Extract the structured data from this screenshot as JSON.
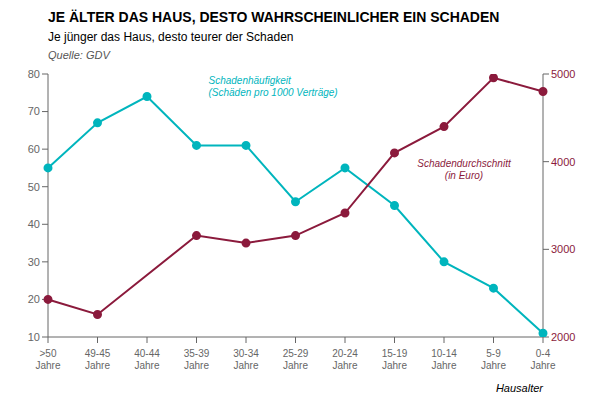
{
  "chart_data": {
    "type": "line",
    "title": "JE ÄLTER DAS HAUS, DESTO WAHRSCHEINLICHER EIN SCHADEN",
    "subtitle": "Je jünger das Haus, desto teurer der Schaden",
    "annotations": [
      "Quelle: GDV"
    ],
    "x_label": "Hausalter",
    "categories": [
      ">50\nJahre",
      "49-45\nJahre",
      "40-44\nJahre",
      "35-39\nJahre",
      "30-34\nJahre",
      "25-29\nJahre",
      "20-24\nJahre",
      "15-19\nJahre",
      "10-14\nJahre",
      "5-9\nJahre",
      "0-4\nJahre"
    ],
    "series": [
      {
        "name": "Schadenhäufigkeit\n(Schäden pro 1000 Verträge)",
        "color": "#00B5BD",
        "marker": "circle",
        "values": [
          55,
          67,
          74,
          61,
          61,
          46,
          55,
          45,
          30,
          23,
          11
        ]
      },
      {
        "name": "Schadendurchschnitt\n(in Euro)",
        "color": "#8B1A3C",
        "marker": "circle",
        "axis": "y2",
        "values": [
          2428.5714285714284,
          2257.1428571428573,
          null,
          3157.1428571428573,
          3071.4285714285716,
          3157.1428571428573,
          3414.285714285714,
          4100,
          4400,
          4957.142857142857,
          4800
        ]
      }
    ],
    "ylim": [
      10,
      80
    ],
    "yticks": [
      10,
      20,
      30,
      40,
      50,
      60,
      70,
      80
    ],
    "y2lim": [
      2000,
      5000
    ],
    "y2ticks": [
      2000,
      3000,
      4000,
      5000
    ],
    "grid": false
  }
}
